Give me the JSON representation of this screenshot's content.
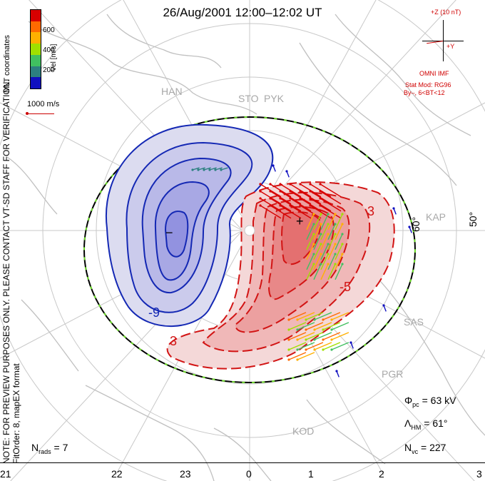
{
  "title": "26/Aug/2001 12:00–12:02 UT",
  "coordinate_system": "MLT coordinates",
  "note_lines": [
    "NOTE: FOR PREVIEW PURPOSES ONLY. PLEASE CONTACT VT-SD STAFF FOR VERIFICATION.",
    "FitOrder: 8, mapEX format"
  ],
  "colorbar": {
    "unit_label": "Vel [m/s]",
    "ticks": [
      "600",
      "400",
      "200"
    ],
    "colors": [
      "#d80000",
      "#ff6a00",
      "#ffb000",
      "#a0e000",
      "#40c060",
      "#2c8080",
      "#1010c0"
    ]
  },
  "vector_scale": {
    "label": "1000 m/s",
    "color": "#cc0000"
  },
  "imf": {
    "bz_label": "+Z (10 nT)",
    "by_label": "+Y",
    "source": "OMNI IMF",
    "model_line1": "Stat Mod: RG96",
    "model_line2": "By–, 6<BT<12"
  },
  "stats": {
    "phi_pc": "63 kV",
    "lambda_hm": "61°",
    "n_vc": "227",
    "n_rads": "7"
  },
  "latitude_labels": [
    "60°",
    "50°"
  ],
  "mlt_labels": [
    "21",
    "22",
    "23",
    "0",
    "1",
    "2",
    "3"
  ],
  "stations": [
    "HAN",
    "STO",
    "PYK",
    "KAP",
    "SAS",
    "PGR",
    "KOD"
  ],
  "contour_labels": [
    "-9",
    "3",
    "3",
    "-5",
    "+",
    "−"
  ],
  "colors": {
    "negative_cell": "#1428b4",
    "positive_cell": "#d21414",
    "grid": "#c8c8c8",
    "coast": "#c0c0c0",
    "boundary": "#000000"
  }
}
